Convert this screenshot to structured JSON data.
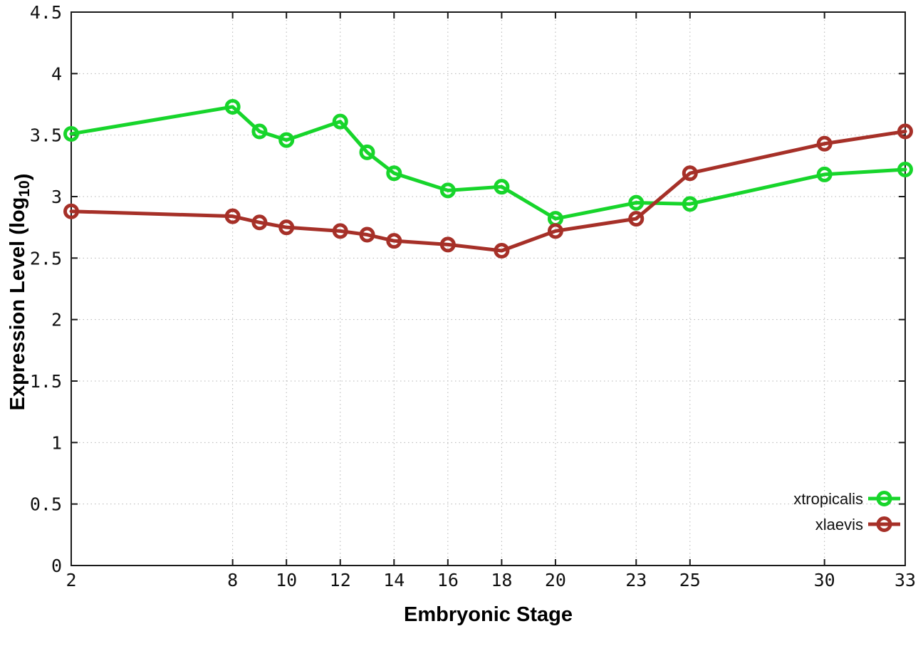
{
  "chart_data": {
    "type": "line",
    "title": "",
    "xlabel": "Embryonic Stage",
    "ylabel": "Expression Level (log10)",
    "ylabel_parts": [
      {
        "text": "Expression Level (log",
        "sub": false
      },
      {
        "text": "10",
        "sub": true
      },
      {
        "text": ")",
        "sub": false
      }
    ],
    "xlim": [
      2,
      33
    ],
    "ylim": [
      0,
      4.5
    ],
    "x_ticks": [
      2,
      8,
      10,
      12,
      14,
      16,
      18,
      20,
      23,
      25,
      30,
      33
    ],
    "y_ticks": [
      0,
      0.5,
      1,
      1.5,
      2,
      2.5,
      3,
      3.5,
      4,
      4.5
    ],
    "grid": true,
    "legend_position": "bottom-right",
    "series": [
      {
        "name": "xtropicalis",
        "color": "#17d52b",
        "x": [
          2,
          8,
          9,
          10,
          12,
          13,
          14,
          16,
          18,
          20,
          23,
          25,
          30,
          33
        ],
        "values": [
          3.51,
          3.73,
          3.53,
          3.46,
          3.61,
          3.36,
          3.19,
          3.05,
          3.08,
          2.82,
          2.95,
          2.94,
          3.18,
          3.22
        ]
      },
      {
        "name": "xlaevis",
        "color": "#a63028",
        "x": [
          2,
          8,
          9,
          10,
          12,
          13,
          14,
          16,
          18,
          20,
          23,
          25,
          30,
          33
        ],
        "values": [
          2.88,
          2.84,
          2.79,
          2.75,
          2.72,
          2.69,
          2.64,
          2.61,
          2.56,
          2.72,
          2.82,
          3.19,
          3.43,
          3.53
        ]
      }
    ]
  },
  "style_colors": {
    "axis": "#1a1a1a",
    "grid": "#b4b4b4",
    "text": "#111111",
    "background": "#ffffff"
  }
}
